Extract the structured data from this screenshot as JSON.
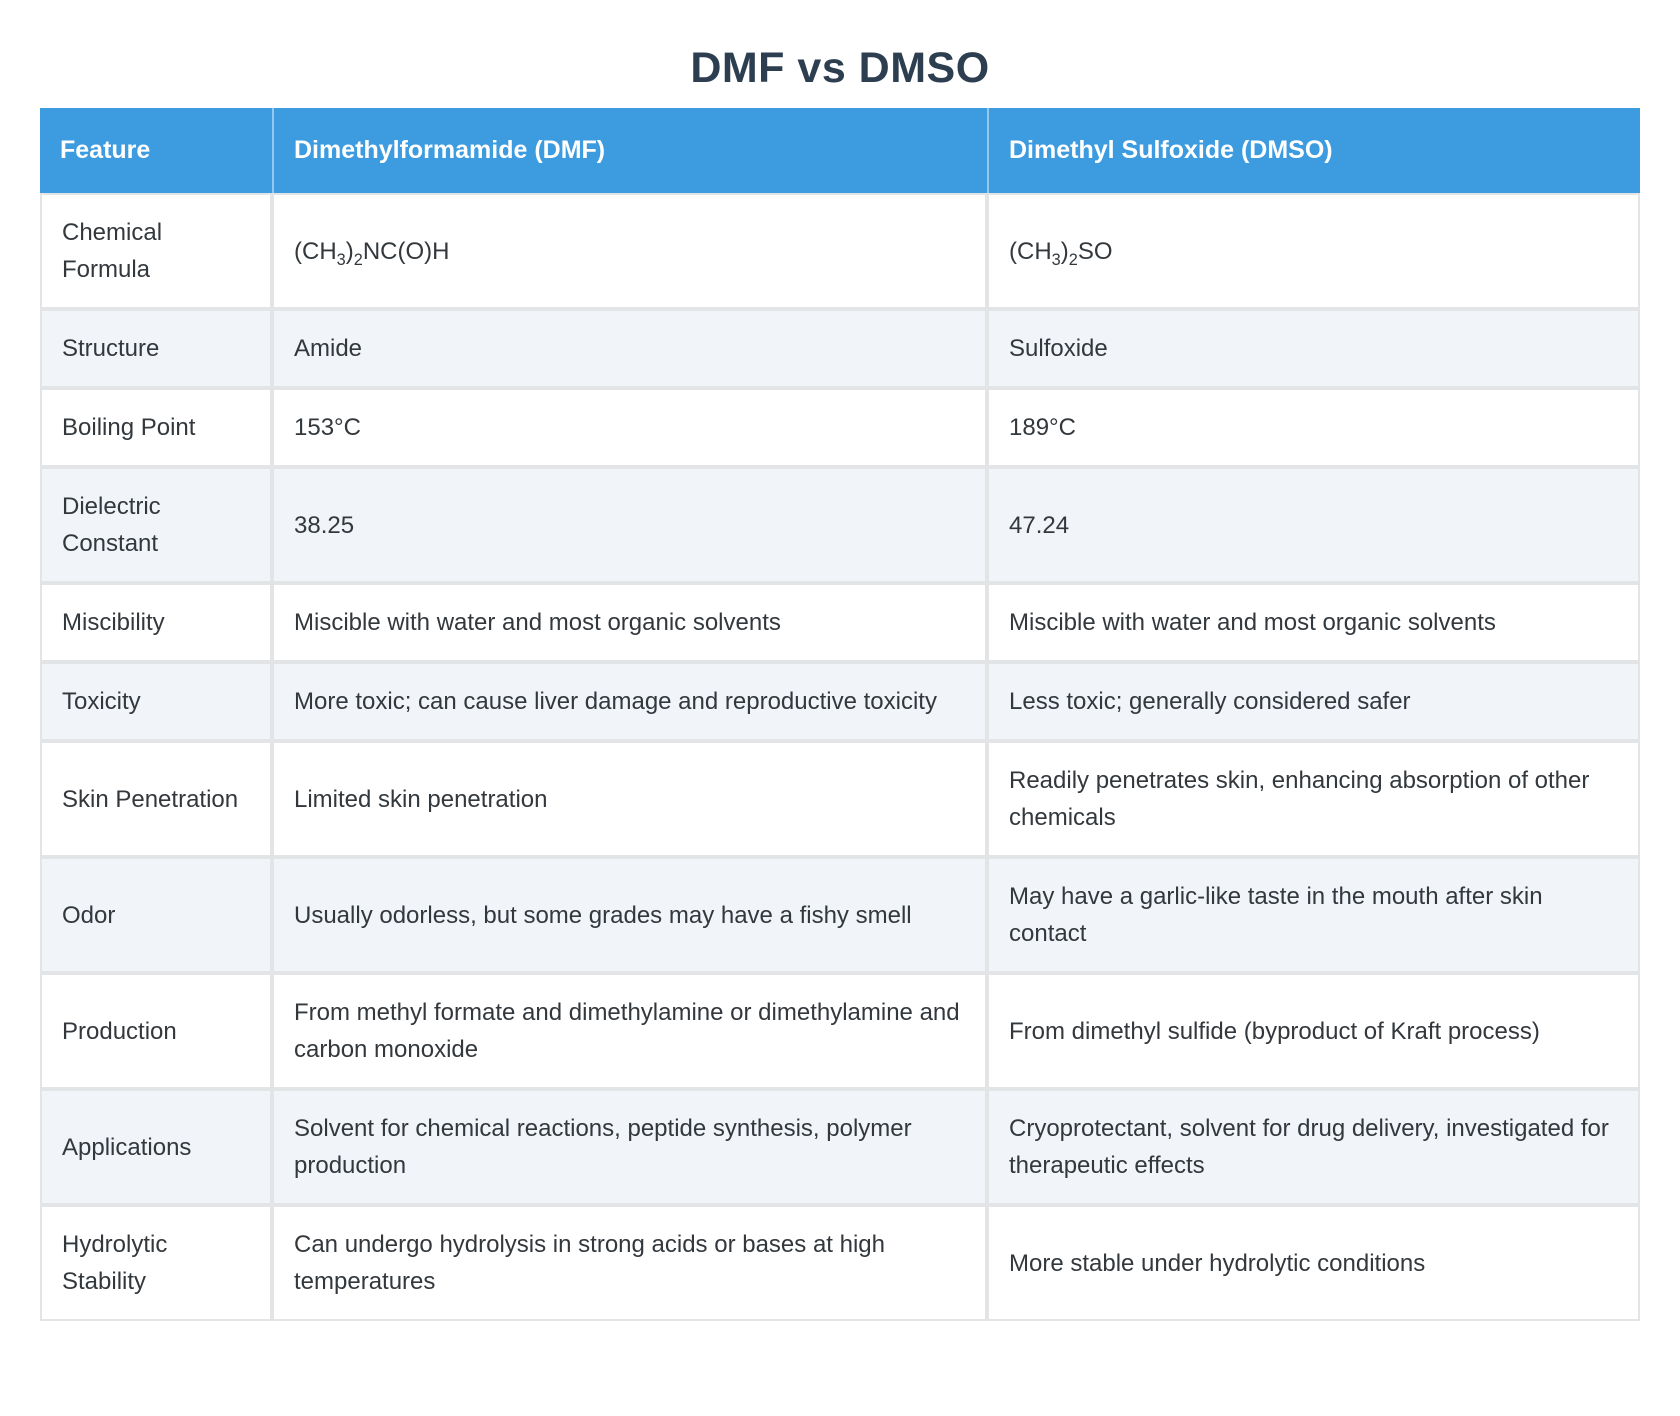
{
  "page": {
    "title": "DMF vs DMSO"
  },
  "theme": {
    "header_bg": "#3d9be0",
    "header_text": "#ffffff",
    "row_bg": "#ffffff",
    "row_alt_bg": "#f1f4f9",
    "border": "#e3e4e6",
    "title_color": "#2d3e50",
    "body_text": "#33383d",
    "page_bg": "#ffffff"
  },
  "table": {
    "headers": [
      {
        "label": "Feature"
      },
      {
        "label": "Dimethylformamide (DMF)"
      },
      {
        "label": "Dimethyl Sulfoxide (DMSO)"
      }
    ],
    "rows": [
      {
        "feature": "Chemical Formula",
        "dmf": [
          {
            "t": "(CH"
          },
          {
            "s": "3"
          },
          {
            "t": ")"
          },
          {
            "s": "2"
          },
          {
            "t": "NC(O)H"
          }
        ],
        "dmso": [
          {
            "t": "(CH"
          },
          {
            "s": "3"
          },
          {
            "t": ")"
          },
          {
            "s": "2"
          },
          {
            "t": "SO"
          }
        ]
      },
      {
        "feature": "Structure",
        "dmf": "Amide",
        "dmso": "Sulfoxide"
      },
      {
        "feature": "Boiling Point",
        "dmf": "153°C",
        "dmso": "189°C"
      },
      {
        "feature": "Dielectric Constant",
        "dmf": "38.25",
        "dmso": "47.24"
      },
      {
        "feature": "Miscibility",
        "dmf": "Miscible with water and most organic solvents",
        "dmso": "Miscible with water and most organic solvents"
      },
      {
        "feature": "Toxicity",
        "dmf": "More toxic; can cause liver damage and reproductive toxicity",
        "dmso": "Less toxic; generally considered safer"
      },
      {
        "feature": "Skin Penetration",
        "dmf": "Limited skin penetration",
        "dmso": "Readily penetrates skin, enhancing absorption of other chemicals"
      },
      {
        "feature": "Odor",
        "dmf": "Usually odorless, but some grades may have a fishy smell",
        "dmso": "May have a garlic-like taste in the mouth after skin contact"
      },
      {
        "feature": "Production",
        "dmf": "From methyl formate and dimethylamine or dimethylamine and carbon monoxide",
        "dmso": "From dimethyl sulfide (byproduct of Kraft process)"
      },
      {
        "feature": "Applications",
        "dmf": "Solvent for chemical reactions, peptide synthesis, polymer production",
        "dmso": "Cryoprotectant, solvent for drug delivery, investigated for therapeutic effects"
      },
      {
        "feature": "Hydrolytic Stability",
        "dmf": "Can undergo hydrolysis in strong acids or bases at high temperatures",
        "dmso": "More stable under hydrolytic conditions"
      }
    ]
  }
}
